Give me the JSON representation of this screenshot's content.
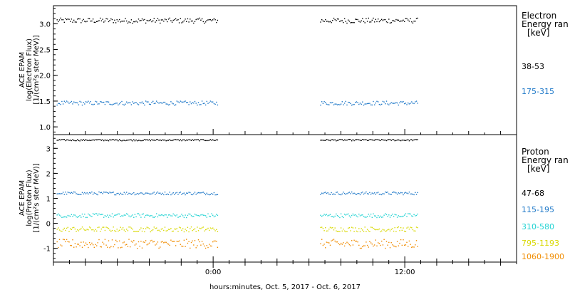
{
  "xaxis": {
    "label": "hours:minutes, Oct.  5, 2017 - Oct.  6, 2017",
    "ticks": [
      {
        "label": "0:00",
        "hours": 0
      },
      {
        "label": "12:00",
        "hours": 12
      }
    ],
    "range_hours": [
      -10,
      19
    ]
  },
  "chart_data": [
    {
      "type": "scatter",
      "panel": "electron",
      "ylabel": [
        "ACE EPAM",
        "log(Electron Flux)",
        "[1/(cm²s ster MeV)]"
      ],
      "ylim": [
        0.85,
        3.35
      ],
      "yticks": [
        {
          "label": "1.0",
          "value": 1.0
        },
        {
          "label": "1.5",
          "value": 1.5
        },
        {
          "label": "2.0",
          "value": 2.0
        },
        {
          "label": "2.5",
          "value": 2.5
        },
        {
          "label": "3.0",
          "value": 3.0
        }
      ],
      "legend_title": [
        "Electron",
        "Energy ran",
        "[keV]"
      ],
      "data_gap_hours": [
        0.25,
        6.7
      ],
      "series": [
        {
          "name": "38-53",
          "color": "#000000",
          "x_range_hours": [
            -9.8,
            12.8
          ],
          "level": 3.07,
          "noise": 0.05
        },
        {
          "name": "175-315",
          "color": "#1e78c8",
          "x_range_hours": [
            -9.8,
            12.8
          ],
          "level": 1.47,
          "noise": 0.04
        }
      ]
    },
    {
      "type": "scatter",
      "panel": "proton",
      "ylabel": [
        "ACE EPAM",
        "log(Proton Flux)",
        "[1/(cm²s ster MeV)]"
      ],
      "ylim": [
        -1.55,
        3.55
      ],
      "yticks": [
        {
          "label": "-1",
          "value": -1
        },
        {
          "label": "0",
          "value": 0
        },
        {
          "label": "1",
          "value": 1
        },
        {
          "label": "2",
          "value": 2
        },
        {
          "label": "3",
          "value": 3
        }
      ],
      "legend_title": [
        "Proton",
        "Energy ran",
        "[keV]"
      ],
      "data_gap_hours": [
        0.25,
        6.7
      ],
      "series": [
        {
          "name": "47-68",
          "color": "#000000",
          "x_range_hours": [
            -9.8,
            12.8
          ],
          "level": 3.35,
          "noise": 0.03
        },
        {
          "name": "115-195",
          "color": "#1e78c8",
          "x_range_hours": [
            -9.8,
            12.8
          ],
          "level": 1.22,
          "noise": 0.06
        },
        {
          "name": "310-580",
          "color": "#22d3d3",
          "x_range_hours": [
            -9.8,
            12.8
          ],
          "level": 0.33,
          "noise": 0.08
        },
        {
          "name": "795-1193",
          "color": "#d8d800",
          "x_range_hours": [
            -9.8,
            12.8
          ],
          "level": -0.22,
          "noise": 0.1
        },
        {
          "name": "1060-1900",
          "color": "#f08c00",
          "x_range_hours": [
            -9.8,
            12.8
          ],
          "level": -0.8,
          "noise": 0.18
        }
      ]
    }
  ]
}
